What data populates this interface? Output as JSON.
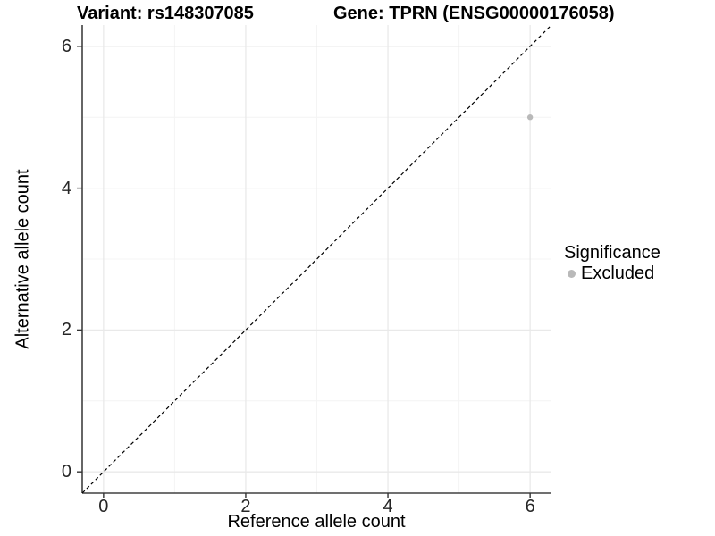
{
  "header": {
    "variant_title": "Variant: rs148307085",
    "gene_title": "Gene: TPRN (ENSG00000176058)"
  },
  "axes": {
    "x": {
      "label": "Reference allele count",
      "ticks": [
        "0",
        "2",
        "4",
        "6"
      ]
    },
    "y": {
      "label": "Alternative allele count",
      "ticks": [
        "0",
        "2",
        "4",
        "6"
      ]
    }
  },
  "legend": {
    "title": "Significance",
    "items": [
      {
        "label": "Excluded",
        "marker": "circle",
        "color": "#b9b9b9"
      }
    ]
  },
  "chart_data": {
    "type": "scatter",
    "title": "Variant: rs148307085 / Gene: TPRN (ENSG00000176058)",
    "xlabel": "Reference allele count",
    "ylabel": "Alternative allele count",
    "xlim": [
      -0.3,
      6.3
    ],
    "ylim": [
      -0.3,
      6.3
    ],
    "x_ticks": [
      0,
      2,
      4,
      6
    ],
    "y_ticks": [
      0,
      2,
      4,
      6
    ],
    "grid": "major gridlines at ticks, minor gridlines at odd integers, light gray on white",
    "legend_position": "right-middle",
    "series": [
      {
        "name": "Excluded",
        "marker": "circle",
        "color": "#b9b9b9",
        "points": [
          {
            "x": 6,
            "y": 5
          }
        ]
      }
    ],
    "annotations": [
      {
        "type": "line",
        "desc": "identity line y = x",
        "style": "dashed",
        "color": "#000000",
        "from": [
          -0.3,
          -0.3
        ],
        "to": [
          6.3,
          6.3
        ]
      }
    ]
  },
  "colors": {
    "background": "#ffffff",
    "grid_major": "#e9e9e9",
    "grid_minor": "#f4f4f4",
    "axis_line": "#404040",
    "tick_mark": "#333333",
    "tick_text": "#262626",
    "title_text": "#000000",
    "point": "#b9b9b9"
  }
}
